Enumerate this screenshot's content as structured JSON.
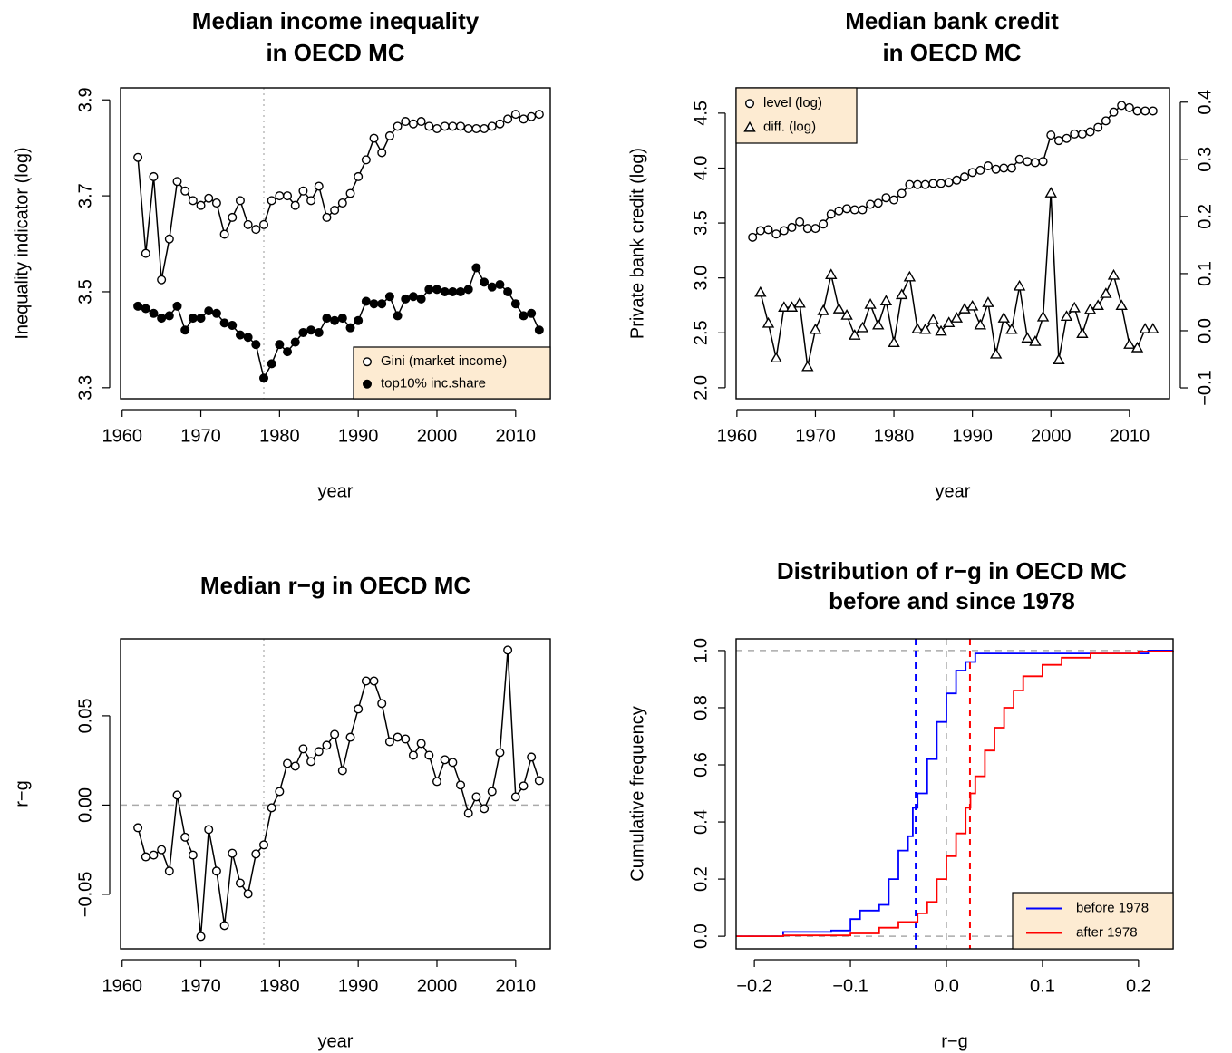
{
  "chart_data": [
    {
      "type": "line",
      "title": [
        "Median income inequality",
        "in OECD MC"
      ],
      "xlabel": "year",
      "ylabel": "Inequality indicator (log)",
      "x": [
        1962,
        1963,
        1964,
        1965,
        1966,
        1967,
        1968,
        1969,
        1970,
        1971,
        1972,
        1973,
        1974,
        1975,
        1976,
        1977,
        1978,
        1979,
        1980,
        1981,
        1982,
        1983,
        1984,
        1985,
        1986,
        1987,
        1988,
        1989,
        1990,
        1991,
        1992,
        1993,
        1994,
        1995,
        1996,
        1997,
        1998,
        1999,
        2000,
        2001,
        2002,
        2003,
        2004,
        2005,
        2006,
        2007,
        2008,
        2009,
        2010,
        2011,
        2012,
        2013
      ],
      "xlim": [
        1959.8,
        2014.4
      ],
      "xticks": [
        1960,
        1970,
        1980,
        1990,
        2000,
        2010
      ],
      "ylim": [
        3.277,
        3.925
      ],
      "yticks": [
        {
          "value": 3.3,
          "label": "3.3"
        },
        {
          "value": 3.5,
          "label": "3.5"
        },
        {
          "value": 3.7,
          "label": "3.7"
        },
        {
          "value": 3.9,
          "label": "3.9"
        }
      ],
      "series": [
        {
          "name": "Gini (market income)",
          "color": "#000000",
          "marker": "open-circle",
          "values": [
            3.78,
            3.58,
            3.74,
            3.525,
            3.61,
            3.73,
            3.71,
            3.69,
            3.68,
            3.695,
            3.685,
            3.62,
            3.655,
            3.69,
            3.64,
            3.63,
            3.64,
            3.69,
            3.7,
            3.7,
            3.68,
            3.71,
            3.69,
            3.72,
            3.655,
            3.67,
            3.685,
            3.705,
            3.74,
            3.775,
            3.82,
            3.79,
            3.825,
            3.845,
            3.855,
            3.85,
            3.855,
            3.845,
            3.84,
            3.845,
            3.845,
            3.845,
            3.84,
            3.84,
            3.84,
            3.845,
            3.85,
            3.86,
            3.87,
            3.86,
            3.865,
            3.87
          ]
        },
        {
          "name": "top10% inc.share",
          "color": "#000000",
          "marker": "filled-circle",
          "values": [
            3.47,
            3.465,
            3.455,
            3.445,
            3.45,
            3.47,
            3.42,
            3.445,
            3.445,
            3.46,
            3.455,
            3.435,
            3.43,
            3.41,
            3.405,
            3.39,
            3.32,
            3.35,
            3.39,
            3.375,
            3.395,
            3.415,
            3.42,
            3.415,
            3.445,
            3.44,
            3.445,
            3.425,
            3.44,
            3.48,
            3.475,
            3.475,
            3.49,
            3.45,
            3.485,
            3.49,
            3.485,
            3.505,
            3.505,
            3.5,
            3.5,
            3.5,
            3.505,
            3.55,
            3.52,
            3.51,
            3.515,
            3.5,
            3.475,
            3.45,
            3.455,
            3.42
          ]
        }
      ],
      "ref_lines": [
        {
          "axis": "x",
          "value": 1978,
          "color": "#bbbbbb",
          "style": "dotted"
        }
      ],
      "legend": "bottomright",
      "legend_fill": "#fdebd2"
    },
    {
      "type": "line",
      "title": [
        "Median bank credit",
        "in OECD MC"
      ],
      "xlabel": "year",
      "ylabel": "Private bank credit (log)",
      "x": [
        1962,
        1963,
        1964,
        1965,
        1966,
        1967,
        1968,
        1969,
        1970,
        1971,
        1972,
        1973,
        1974,
        1975,
        1976,
        1977,
        1978,
        1979,
        1980,
        1981,
        1982,
        1983,
        1984,
        1985,
        1986,
        1987,
        1988,
        1989,
        1990,
        1991,
        1992,
        1993,
        1994,
        1995,
        1996,
        1997,
        1998,
        1999,
        2000,
        2001,
        2002,
        2003,
        2004,
        2005,
        2006,
        2007,
        2008,
        2009,
        2010,
        2011,
        2012,
        2013
      ],
      "xlim": [
        1959.9,
        2015.1
      ],
      "xticks": [
        1960,
        1970,
        1980,
        1990,
        2000,
        2010
      ],
      "ylim": [
        1.9,
        4.73
      ],
      "yticks": [
        {
          "value": 2,
          "label": "2.0"
        },
        2.5,
        {
          "value": 3,
          "label": "3.0"
        },
        3.5,
        {
          "value": 4,
          "label": "4.0"
        },
        4.5
      ],
      "y2lim": [
        -0.119,
        0.425
      ],
      "y2ticks": [
        {
          "value": -0.1,
          "label": "−0.1"
        },
        {
          "value": 0,
          "label": "0.0"
        },
        0.1,
        0.2,
        0.3,
        0.4
      ],
      "series": [
        {
          "name": "level (log)",
          "color": "#000000",
          "marker": "open-circle",
          "values": [
            3.37,
            3.43,
            3.44,
            3.4,
            3.43,
            3.46,
            3.51,
            3.45,
            3.45,
            3.49,
            3.58,
            3.61,
            3.63,
            3.62,
            3.62,
            3.67,
            3.68,
            3.73,
            3.71,
            3.77,
            3.85,
            3.85,
            3.85,
            3.86,
            3.86,
            3.87,
            3.89,
            3.92,
            3.96,
            3.98,
            4.02,
            3.99,
            4.0,
            4.0,
            4.08,
            4.06,
            4.05,
            4.06,
            4.3,
            4.25,
            4.27,
            4.31,
            4.31,
            4.33,
            4.37,
            4.43,
            4.51,
            4.57,
            4.55,
            4.52,
            4.52,
            4.52
          ]
        },
        {
          "name": "diff. (log)",
          "color": "#000000",
          "marker": "open-triangle",
          "axis": "y2",
          "values": [
            null,
            0.067,
            0.013,
            -0.048,
            0.041,
            0.041,
            0.048,
            -0.063,
            0.002,
            0.035,
            0.098,
            0.038,
            0.027,
            -0.008,
            0.005,
            0.046,
            0.01,
            0.052,
            -0.021,
            0.063,
            0.094,
            0.003,
            0.002,
            0.019,
            -0.001,
            0.014,
            0.022,
            0.038,
            0.043,
            0.01,
            0.049,
            -0.041,
            0.022,
            0.002,
            0.078,
            -0.013,
            -0.019,
            0.024,
            0.241,
            -0.051,
            0.025,
            0.04,
            -0.005,
            0.037,
            0.044,
            0.065,
            0.097,
            0.044,
            -0.024,
            -0.03,
            0.003,
            0.003
          ]
        }
      ],
      "legend": "topleft",
      "legend_fill": "#fdebd2"
    },
    {
      "type": "line",
      "title": [
        "Median r−g in OECD MC"
      ],
      "xlabel": "year",
      "ylabel": "r−g",
      "x": [
        1962,
        1963,
        1964,
        1965,
        1966,
        1967,
        1968,
        1969,
        1970,
        1971,
        1972,
        1973,
        1974,
        1975,
        1976,
        1977,
        1978,
        1979,
        1980,
        1981,
        1982,
        1983,
        1984,
        1985,
        1986,
        1987,
        1988,
        1989,
        1990,
        1991,
        1992,
        1993,
        1994,
        1995,
        1996,
        1997,
        1998,
        1999,
        2000,
        2001,
        2002,
        2003,
        2004,
        2005,
        2006,
        2007,
        2008,
        2009,
        2010,
        2011,
        2012,
        2013
      ],
      "xlim": [
        1959.8,
        2014.4
      ],
      "xticks": [
        1960,
        1970,
        1980,
        1990,
        2000,
        2010
      ],
      "ylim": [
        -0.0805,
        0.0931
      ],
      "yticks": [
        {
          "value": -0.05,
          "label": "−0.05"
        },
        {
          "value": 0,
          "label": "0.00"
        },
        0.05
      ],
      "series": [
        {
          "name": "r−g",
          "color": "#000000",
          "marker": "open-circle",
          "values": [
            -0.0127,
            -0.029,
            -0.028,
            -0.025,
            -0.037,
            0.0056,
            -0.018,
            -0.028,
            -0.0736,
            -0.0137,
            -0.037,
            -0.0675,
            -0.027,
            -0.0437,
            -0.0497,
            -0.0274,
            -0.0223,
            -0.0015,
            0.0076,
            0.0233,
            0.0218,
            0.0315,
            0.0244,
            0.03,
            0.0335,
            0.0396,
            0.0193,
            0.038,
            0.0538,
            0.0695,
            0.0695,
            0.0569,
            0.0355,
            0.038,
            0.037,
            0.0279,
            0.0345,
            0.0279,
            0.0132,
            0.0254,
            0.0239,
            0.0112,
            -0.0046,
            0.0046,
            -0.002,
            0.0076,
            0.0294,
            0.0868,
            0.0046,
            0.0107,
            0.0269,
            0.0137
          ]
        }
      ],
      "ref_lines": [
        {
          "axis": "x",
          "value": 1978,
          "color": "#bbbbbb",
          "style": "dotted"
        },
        {
          "axis": "y",
          "value": 0,
          "color": "#aaaaaa",
          "style": "dashed"
        }
      ]
    },
    {
      "type": "ecdf",
      "title": [
        "Distribution of r−g in OECD MC",
        "before and since 1978"
      ],
      "xlabel": "r−g",
      "ylabel": "Cumulative frequency",
      "xlim": [
        -0.219,
        0.236
      ],
      "xticks": [
        {
          "value": -0.2,
          "label": "−0.2"
        },
        {
          "value": -0.1,
          "label": "−0.1"
        },
        {
          "value": 0,
          "label": "0.0"
        },
        0.1,
        0.2
      ],
      "ylim": [
        -0.044,
        1.041
      ],
      "yticks": [
        {
          "value": 0,
          "label": "0.0"
        },
        0.2,
        0.4,
        0.6,
        0.8,
        {
          "value": 1,
          "label": "1.0"
        }
      ],
      "series": [
        {
          "name": "before 1978",
          "color": "#0000ff",
          "median": -0.032,
          "x": [
            -0.219,
            -0.17,
            -0.12,
            -0.1,
            -0.09,
            -0.07,
            -0.06,
            -0.05,
            -0.04,
            -0.035,
            -0.03,
            -0.02,
            -0.01,
            0,
            0.01,
            0.02,
            0.03,
            0.21,
            0.236
          ],
          "values": [
            0,
            0.015,
            0.02,
            0.06,
            0.09,
            0.11,
            0.2,
            0.3,
            0.35,
            0.45,
            0.5,
            0.62,
            0.75,
            0.85,
            0.93,
            0.96,
            0.99,
            1,
            1
          ]
        },
        {
          "name": "after 1978",
          "color": "#ff0000",
          "median": 0.0245,
          "x": [
            -0.219,
            -0.17,
            -0.1,
            -0.07,
            -0.05,
            -0.03,
            -0.02,
            -0.01,
            0,
            0.01,
            0.02,
            0.025,
            0.03,
            0.04,
            0.05,
            0.06,
            0.07,
            0.08,
            0.1,
            0.12,
            0.15,
            0.2,
            0.236
          ],
          "values": [
            0,
            0.003,
            0.01,
            0.03,
            0.05,
            0.08,
            0.12,
            0.2,
            0.28,
            0.36,
            0.45,
            0.5,
            0.56,
            0.65,
            0.73,
            0.8,
            0.86,
            0.91,
            0.95,
            0.975,
            0.99,
            0.997,
            1
          ]
        }
      ],
      "ref_lines": [
        {
          "axis": "y",
          "value": 0,
          "color": "#aaaaaa",
          "style": "dashed"
        },
        {
          "axis": "y",
          "value": 1,
          "color": "#aaaaaa",
          "style": "dashed"
        },
        {
          "axis": "x",
          "value": 0,
          "color": "#aaaaaa",
          "style": "dashed"
        }
      ],
      "legend": "bottomright",
      "legend_fill": "#fdebd2"
    }
  ]
}
